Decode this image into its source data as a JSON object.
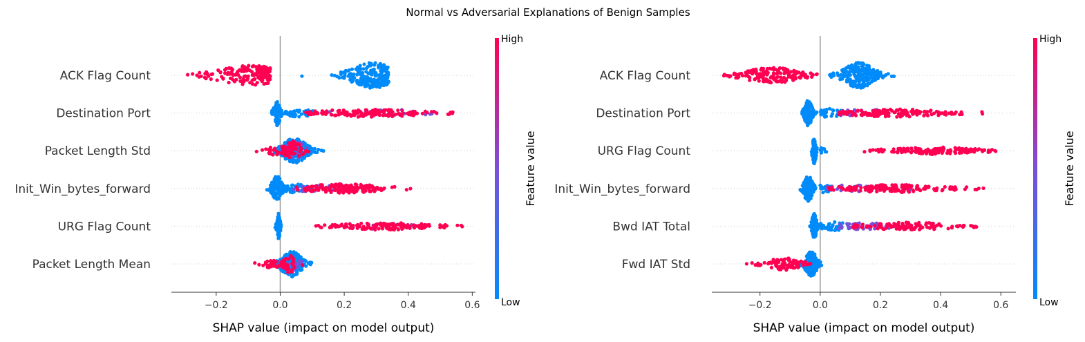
{
  "title": "Normal vs Adversarial Explanations of Benign Samples",
  "colors": {
    "high": "#ff0052",
    "low": "#008bfb",
    "mid": "#7b4fd9",
    "zero_line": "#999999",
    "row_grid": "#cccccc",
    "text": "#333333"
  },
  "chart_data": [
    {
      "type": "scatter",
      "subtype": "shap-beeswarm",
      "title": "",
      "xlabel": "SHAP value (impact on model output)",
      "xlim": [
        -0.34,
        0.61
      ],
      "xticks": [
        -0.2,
        0.0,
        0.2,
        0.4,
        0.6
      ],
      "xtick_labels": [
        "−0.2",
        "0.0",
        "0.2",
        "0.4",
        "0.6"
      ],
      "colorbar": {
        "label": "Feature value",
        "high_label": "High",
        "low_label": "Low"
      },
      "features": [
        {
          "name": "ACK Flag Count",
          "clusters": [
            {
              "color": "high",
              "center": -0.09,
              "spread": 0.09,
              "min": -0.3,
              "max": -0.03,
              "n": 160,
              "height": 0.75
            },
            {
              "color": "low",
              "center": 0.29,
              "spread": 0.055,
              "min": 0.04,
              "max": 0.34,
              "n": 230,
              "height": 1.0
            }
          ]
        },
        {
          "name": "Destination Port",
          "clusters": [
            {
              "color": "low",
              "center": -0.01,
              "spread": 0.008,
              "min": -0.04,
              "max": 0.02,
              "n": 90,
              "height": 1.0
            },
            {
              "color": "low",
              "center": 0.06,
              "spread": 0.03,
              "min": 0.0,
              "max": 0.12,
              "n": 40,
              "height": 0.25
            },
            {
              "color": "high",
              "center": 0.28,
              "spread": 0.12,
              "min": 0.08,
              "max": 0.54,
              "n": 150,
              "height": 0.25
            },
            {
              "color": "mid",
              "center": 0.35,
              "spread": 0.1,
              "min": 0.15,
              "max": 0.5,
              "n": 25,
              "height": 0.2
            }
          ]
        },
        {
          "name": "Packet Length Std",
          "clusters": [
            {
              "color": "high",
              "center": 0.0,
              "spread": 0.035,
              "min": -0.08,
              "max": 0.08,
              "n": 35,
              "height": 0.35
            },
            {
              "color": "low",
              "center": 0.045,
              "spread": 0.03,
              "min": -0.02,
              "max": 0.14,
              "n": 220,
              "height": 1.0
            },
            {
              "color": "high",
              "center": 0.04,
              "spread": 0.02,
              "min": -0.01,
              "max": 0.09,
              "n": 45,
              "height": 0.8
            },
            {
              "color": "mid",
              "center": 0.045,
              "spread": 0.025,
              "min": -0.01,
              "max": 0.1,
              "n": 25,
              "height": 0.8
            }
          ]
        },
        {
          "name": "Init_Win_bytes_forward",
          "clusters": [
            {
              "color": "low",
              "center": -0.01,
              "spread": 0.012,
              "min": -0.06,
              "max": 0.03,
              "n": 120,
              "height": 1.0
            },
            {
              "color": "low",
              "center": 0.05,
              "spread": 0.03,
              "min": 0.0,
              "max": 0.12,
              "n": 40,
              "height": 0.3
            },
            {
              "color": "high",
              "center": 0.2,
              "spread": 0.09,
              "min": 0.05,
              "max": 0.55,
              "n": 160,
              "height": 0.3
            },
            {
              "color": "mid",
              "center": 0.12,
              "spread": 0.06,
              "min": 0.04,
              "max": 0.3,
              "n": 25,
              "height": 0.25
            }
          ]
        },
        {
          "name": "URG Flag Count",
          "clusters": [
            {
              "color": "low",
              "center": -0.005,
              "spread": 0.004,
              "min": -0.02,
              "max": 0.01,
              "n": 80,
              "height": 1.0
            },
            {
              "color": "high",
              "center": 0.33,
              "spread": 0.11,
              "min": 0.1,
              "max": 0.57,
              "n": 150,
              "height": 0.22
            },
            {
              "color": "mid",
              "center": 0.3,
              "spread": 0.08,
              "min": 0.15,
              "max": 0.45,
              "n": 10,
              "height": 0.15
            }
          ]
        },
        {
          "name": "Packet Length Mean",
          "clusters": [
            {
              "color": "high",
              "center": -0.03,
              "spread": 0.025,
              "min": -0.1,
              "max": 0.02,
              "n": 40,
              "height": 0.25
            },
            {
              "color": "low",
              "center": 0.035,
              "spread": 0.025,
              "min": -0.02,
              "max": 0.11,
              "n": 210,
              "height": 1.0
            },
            {
              "color": "high",
              "center": 0.03,
              "spread": 0.015,
              "min": 0.0,
              "max": 0.07,
              "n": 35,
              "height": 0.7
            },
            {
              "color": "mid",
              "center": 0.035,
              "spread": 0.02,
              "min": 0.0,
              "max": 0.08,
              "n": 20,
              "height": 0.7
            }
          ]
        }
      ]
    },
    {
      "type": "scatter",
      "subtype": "shap-beeswarm",
      "title": "",
      "xlabel": "SHAP value (impact on model output)",
      "xlim": [
        -0.36,
        0.65
      ],
      "xticks": [
        -0.2,
        0.0,
        0.2,
        0.4,
        0.6
      ],
      "xtick_labels": [
        "−0.2",
        "0.0",
        "0.2",
        "0.4",
        "0.6"
      ],
      "colorbar": {
        "label": "Feature value",
        "high_label": "High",
        "low_label": "Low"
      },
      "features": [
        {
          "name": "ACK Flag Count",
          "clusters": [
            {
              "color": "high",
              "center": -0.16,
              "spread": 0.07,
              "min": -0.33,
              "max": -0.01,
              "n": 170,
              "height": 0.6
            },
            {
              "color": "low",
              "center": 0.13,
              "spread": 0.04,
              "min": 0.03,
              "max": 0.31,
              "n": 230,
              "height": 1.0
            }
          ]
        },
        {
          "name": "Destination Port",
          "clusters": [
            {
              "color": "low",
              "center": -0.04,
              "spread": 0.01,
              "min": -0.06,
              "max": 0.0,
              "n": 110,
              "height": 1.0
            },
            {
              "color": "low",
              "center": 0.03,
              "spread": 0.03,
              "min": 0.0,
              "max": 0.1,
              "n": 35,
              "height": 0.3
            },
            {
              "color": "high",
              "center": 0.25,
              "spread": 0.11,
              "min": 0.06,
              "max": 0.55,
              "n": 150,
              "height": 0.25
            },
            {
              "color": "mid",
              "center": 0.15,
              "spread": 0.08,
              "min": 0.06,
              "max": 0.35,
              "n": 30,
              "height": 0.22
            }
          ]
        },
        {
          "name": "URG Flag Count",
          "clusters": [
            {
              "color": "low",
              "center": -0.02,
              "spread": 0.005,
              "min": -0.03,
              "max": 0.0,
              "n": 80,
              "height": 1.0
            },
            {
              "color": "low",
              "center": 0.01,
              "spread": 0.01,
              "min": 0.0,
              "max": 0.03,
              "n": 10,
              "height": 0.2
            },
            {
              "color": "high",
              "center": 0.38,
              "spread": 0.1,
              "min": 0.12,
              "max": 0.6,
              "n": 150,
              "height": 0.22
            }
          ]
        },
        {
          "name": "Init_Win_bytes_forward",
          "clusters": [
            {
              "color": "low",
              "center": -0.04,
              "spread": 0.012,
              "min": -0.07,
              "max": 0.0,
              "n": 110,
              "height": 1.0
            },
            {
              "color": "low",
              "center": 0.02,
              "spread": 0.02,
              "min": 0.0,
              "max": 0.06,
              "n": 25,
              "height": 0.3
            },
            {
              "color": "high",
              "center": 0.25,
              "spread": 0.12,
              "min": 0.02,
              "max": 0.57,
              "n": 160,
              "height": 0.25
            },
            {
              "color": "mid",
              "center": 0.1,
              "spread": 0.06,
              "min": 0.02,
              "max": 0.3,
              "n": 25,
              "height": 0.22
            }
          ]
        },
        {
          "name": "Bwd IAT Total",
          "clusters": [
            {
              "color": "low",
              "center": -0.02,
              "spread": 0.006,
              "min": -0.035,
              "max": 0.0,
              "n": 100,
              "height": 1.0
            },
            {
              "color": "low",
              "center": 0.05,
              "spread": 0.04,
              "min": 0.0,
              "max": 0.15,
              "n": 40,
              "height": 0.3
            },
            {
              "color": "mid",
              "center": 0.15,
              "spread": 0.06,
              "min": 0.05,
              "max": 0.3,
              "n": 50,
              "height": 0.28
            },
            {
              "color": "high",
              "center": 0.3,
              "spread": 0.1,
              "min": 0.1,
              "max": 0.55,
              "n": 110,
              "height": 0.25
            }
          ]
        },
        {
          "name": "Fwd IAT Std",
          "clusters": [
            {
              "color": "high",
              "center": -0.12,
              "spread": 0.04,
              "min": -0.28,
              "max": -0.03,
              "n": 90,
              "height": 0.45
            },
            {
              "color": "low",
              "center": -0.03,
              "spread": 0.015,
              "min": -0.07,
              "max": 0.03,
              "n": 170,
              "height": 1.0
            }
          ]
        }
      ]
    }
  ]
}
